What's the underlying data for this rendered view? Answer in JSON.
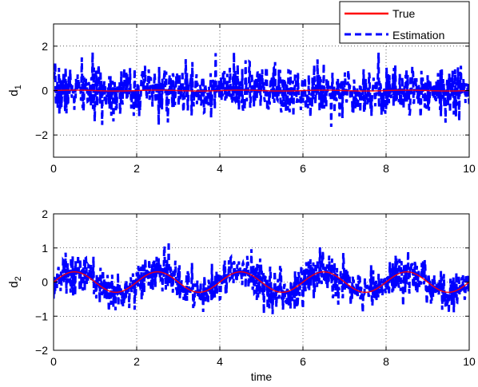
{
  "chart_data": [
    {
      "type": "line",
      "ylabel": "d",
      "ylabel_sub": "1",
      "xlabel": "",
      "xlim": [
        0,
        10
      ],
      "ylim": [
        -3,
        3
      ],
      "xticks": [
        "0",
        "2",
        "4",
        "6",
        "8",
        "10"
      ],
      "yticks": [
        "−2",
        "0",
        "2"
      ],
      "ytick_values": [
        -2,
        0,
        2
      ],
      "grid": true,
      "legend": "top-right",
      "true_signal": {
        "name": "True",
        "color": "#ff0000",
        "amplitude": 0.02,
        "offset": 0.0,
        "frequency": 0.5
      },
      "estimation": {
        "name": "Estimation",
        "color": "#0000ff",
        "noise_std": 0.55,
        "points": 1000,
        "seed": 7
      }
    },
    {
      "type": "line",
      "ylabel": "d",
      "ylabel_sub": "2",
      "xlabel": "time",
      "xlim": [
        0,
        10
      ],
      "ylim": [
        -2,
        2
      ],
      "xticks": [
        "0",
        "2",
        "4",
        "6",
        "8",
        "10"
      ],
      "yticks": [
        "−2",
        "−1",
        "0",
        "1",
        "2"
      ],
      "ytick_values": [
        -2,
        -1,
        0,
        1,
        2
      ],
      "grid": true,
      "true_signal": {
        "name": "True",
        "color": "#ff0000",
        "amplitude": 0.3,
        "offset": 0.0,
        "frequency": 0.5
      },
      "estimation": {
        "name": "Estimation",
        "color": "#0000ff",
        "noise_std": 0.3,
        "points": 1000,
        "seed": 13
      }
    }
  ],
  "legend": {
    "items": [
      {
        "label": "True",
        "color": "#ff0000",
        "style": "solid"
      },
      {
        "label": "Estimation",
        "color": "#0000ff",
        "style": "dashed"
      }
    ]
  }
}
